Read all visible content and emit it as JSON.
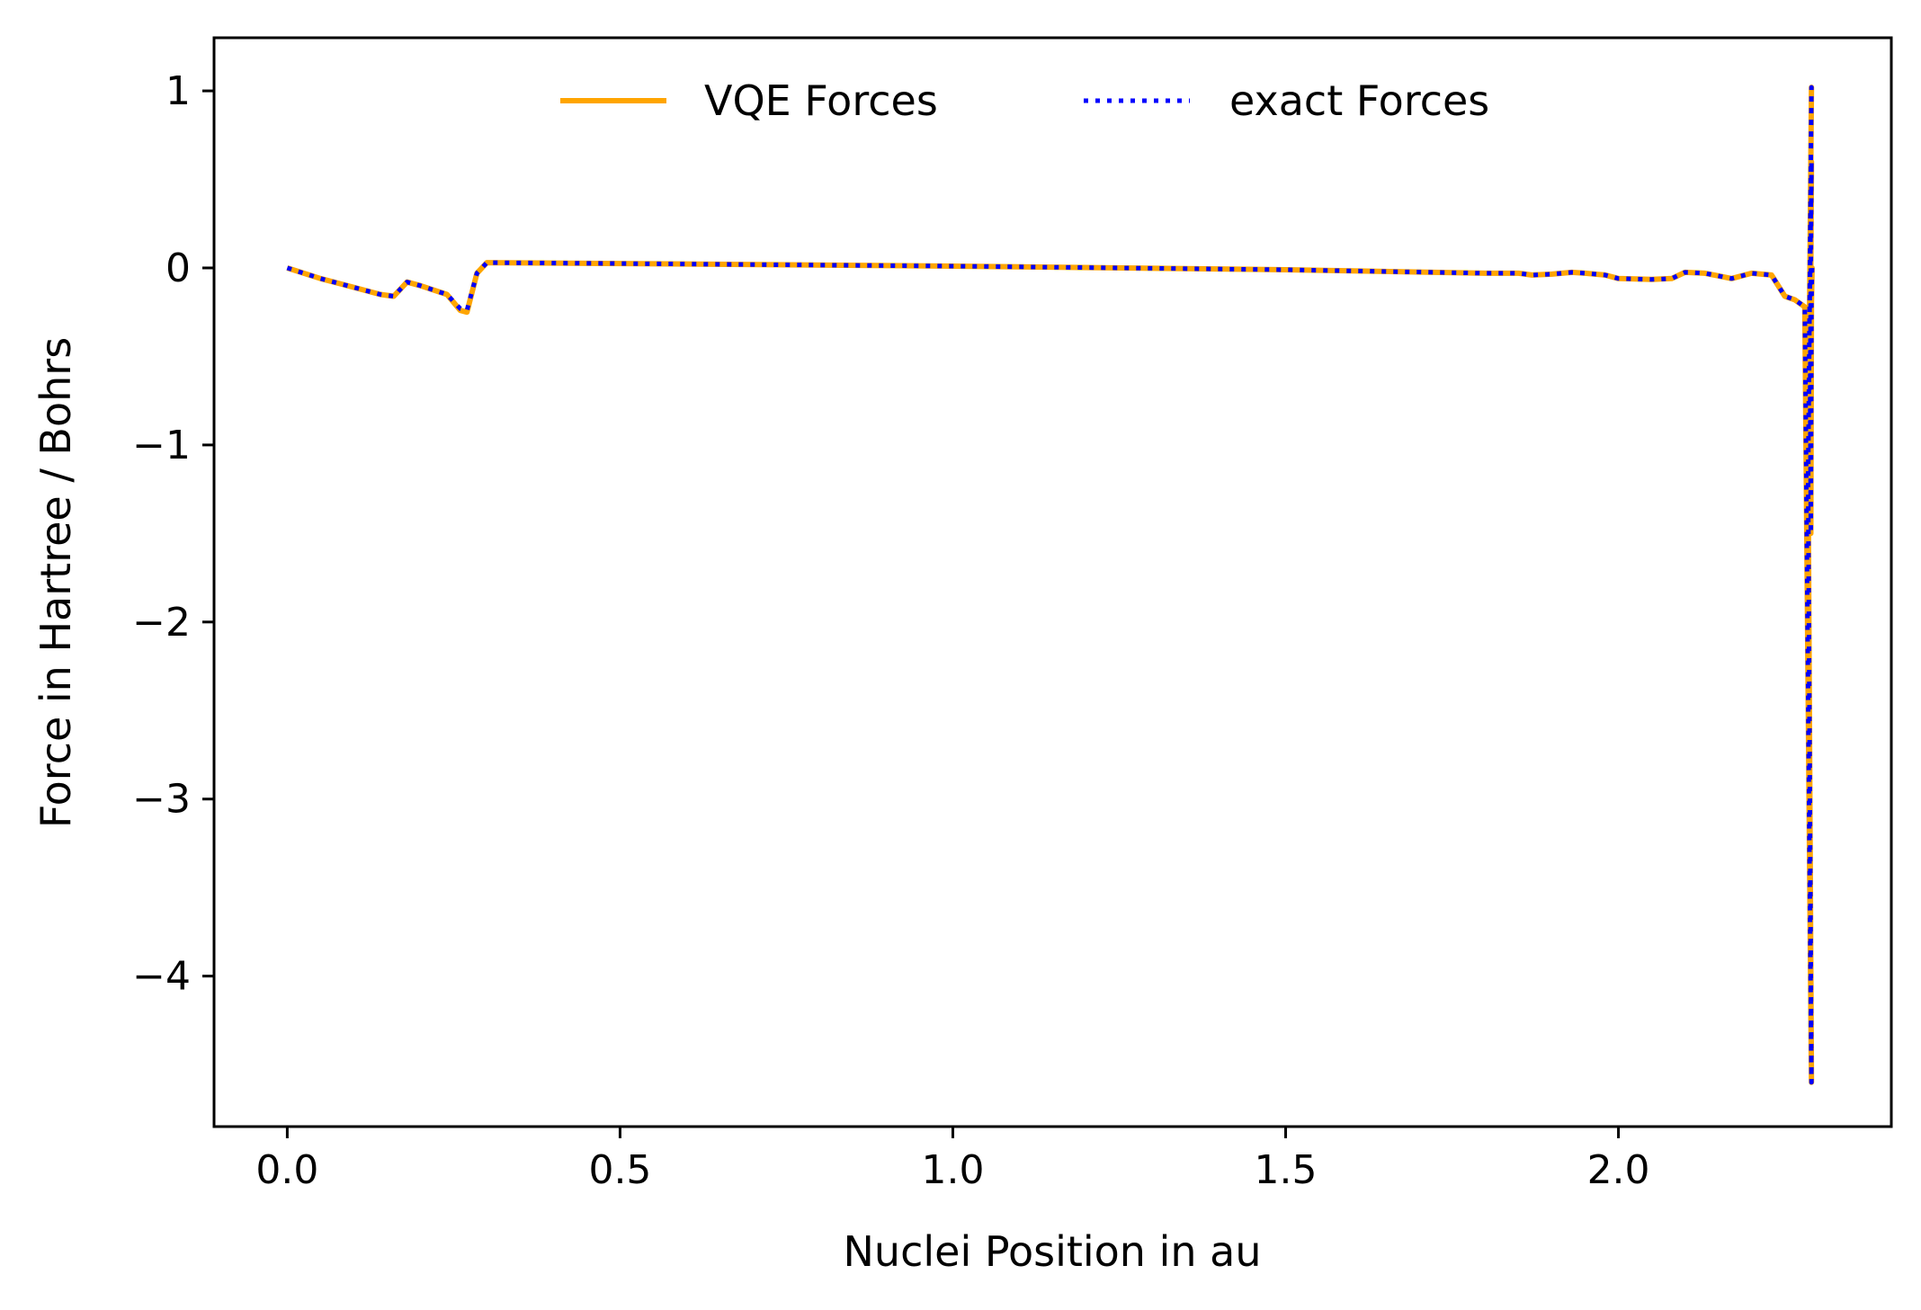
{
  "chart_data": {
    "type": "line",
    "title": "",
    "xlabel": "Nuclei Position in au",
    "ylabel": "Force in Hartree / Bohrs",
    "xlim": [
      -0.11,
      2.41
    ],
    "ylim": [
      -4.85,
      1.3
    ],
    "xticks": [
      {
        "value": 0.0,
        "label": "0.0"
      },
      {
        "value": 0.5,
        "label": "0.5"
      },
      {
        "value": 1.0,
        "label": "1.0"
      },
      {
        "value": 1.5,
        "label": "1.5"
      },
      {
        "value": 2.0,
        "label": "2.0"
      }
    ],
    "yticks": [
      {
        "value": 1,
        "label": "1"
      },
      {
        "value": 0,
        "label": "0"
      },
      {
        "value": -1,
        "label": "−1"
      },
      {
        "value": -2,
        "label": "−2"
      },
      {
        "value": -3,
        "label": "−3"
      },
      {
        "value": -4,
        "label": "−4"
      }
    ],
    "grid": false,
    "legend_position": "top-center",
    "series": [
      {
        "name": "VQE Forces",
        "color": "#FFA500",
        "style": "solid",
        "x": [
          0.0,
          0.05,
          0.1,
          0.14,
          0.16,
          0.18,
          0.2,
          0.24,
          0.26,
          0.27,
          0.285,
          0.3,
          0.5,
          1.0,
          1.5,
          1.8,
          1.85,
          1.87,
          1.9,
          1.93,
          1.95,
          1.98,
          2.0,
          2.05,
          2.08,
          2.1,
          2.13,
          2.17,
          2.2,
          2.23,
          2.25,
          2.265,
          2.28,
          2.29,
          2.285,
          2.29,
          2.287,
          2.29,
          2.288,
          2.289,
          2.29,
          2.291,
          2.289
        ],
        "y": [
          0.0,
          -0.06,
          -0.11,
          -0.15,
          -0.16,
          -0.08,
          -0.1,
          -0.15,
          -0.24,
          -0.25,
          -0.03,
          0.03,
          0.025,
          0.01,
          -0.01,
          -0.03,
          -0.03,
          -0.04,
          -0.035,
          -0.025,
          -0.03,
          -0.04,
          -0.06,
          -0.065,
          -0.06,
          -0.025,
          -0.03,
          -0.06,
          -0.03,
          -0.04,
          -0.16,
          -0.18,
          -0.22,
          -4.6,
          -1.2,
          1.02,
          -0.3,
          0.6,
          -0.7,
          -1.5,
          -0.2,
          0.0,
          -0.04
        ]
      },
      {
        "name": "exact Forces",
        "color": "#0000FF",
        "style": "dotted",
        "x": [
          0.0,
          0.05,
          0.1,
          0.14,
          0.16,
          0.18,
          0.2,
          0.24,
          0.26,
          0.27,
          0.285,
          0.3,
          0.5,
          1.0,
          1.5,
          1.8,
          1.85,
          1.87,
          1.9,
          1.93,
          1.95,
          1.98,
          2.0,
          2.05,
          2.08,
          2.1,
          2.13,
          2.17,
          2.2,
          2.23,
          2.25,
          2.265,
          2.28,
          2.29,
          2.285,
          2.29,
          2.287,
          2.29,
          2.288,
          2.289,
          2.29,
          2.291,
          2.289
        ],
        "y": [
          0.0,
          -0.06,
          -0.11,
          -0.15,
          -0.16,
          -0.08,
          -0.1,
          -0.15,
          -0.23,
          -0.24,
          -0.03,
          0.03,
          0.025,
          0.01,
          -0.01,
          -0.03,
          -0.03,
          -0.04,
          -0.035,
          -0.025,
          -0.03,
          -0.04,
          -0.06,
          -0.065,
          -0.06,
          -0.025,
          -0.03,
          -0.06,
          -0.03,
          -0.04,
          -0.16,
          -0.18,
          -0.22,
          -4.6,
          -1.2,
          1.02,
          -0.3,
          0.6,
          -0.7,
          -1.5,
          -0.2,
          0.0,
          -0.04
        ]
      }
    ]
  }
}
